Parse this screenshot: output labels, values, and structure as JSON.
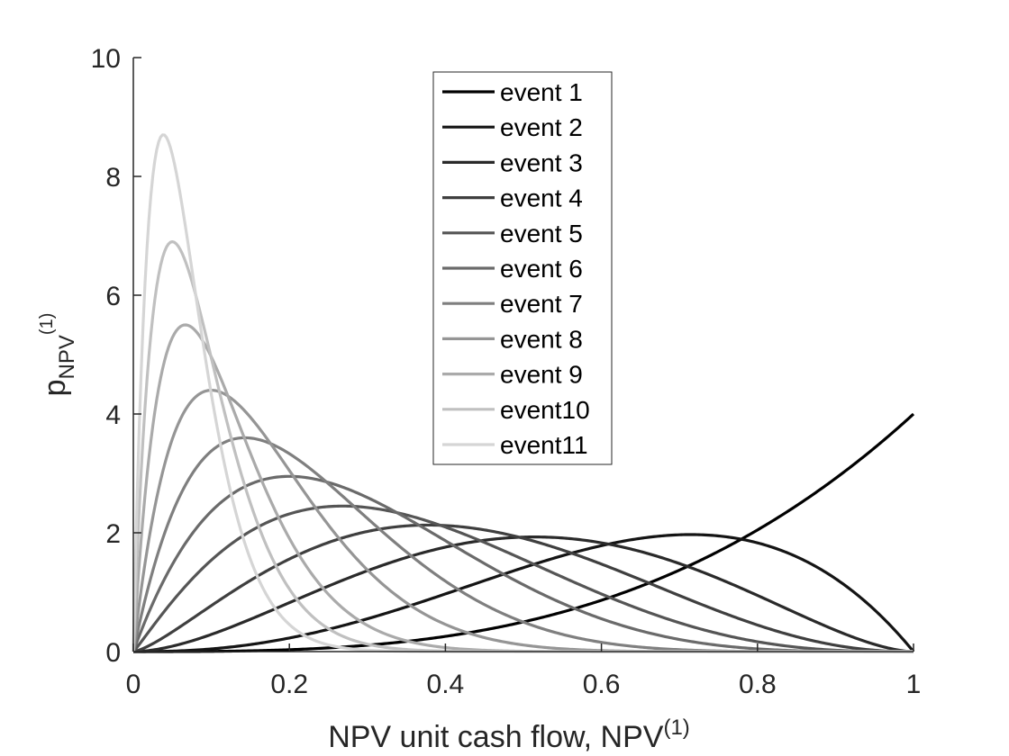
{
  "chart_data": {
    "type": "line",
    "title": "",
    "xlabel": "NPV unit cash flow, NPV",
    "xlabel_superscript": "(1)",
    "ylabel_main": "p",
    "ylabel_subscript": "NPV",
    "ylabel_superscript": "(1)",
    "xlim": [
      0,
      1
    ],
    "ylim": [
      0,
      10
    ],
    "xticks": [
      0,
      0.2,
      0.4,
      0.6,
      0.8,
      1
    ],
    "xtick_labels": [
      "0",
      "0.2",
      "0.4",
      "0.6",
      "0.8",
      "1"
    ],
    "yticks": [
      0,
      2,
      4,
      6,
      8,
      10
    ],
    "ytick_labels": [
      "0",
      "2",
      "4",
      "6",
      "8",
      "10"
    ],
    "grid": false,
    "legend_position": "top-center",
    "series": [
      {
        "name": "event 1",
        "color": "#000000",
        "a": 4,
        "b": 1,
        "peak_x": 1.0,
        "peak_y": 4.0
      },
      {
        "name": "event 2",
        "color": "#141414",
        "a": 3.5,
        "b": 2,
        "peak_x": 0.71,
        "peak_y": 1.97
      },
      {
        "name": "event 3",
        "color": "#2a2a2a",
        "a": 2.8,
        "b": 2.7,
        "peak_x": 0.51,
        "peak_y": 1.93
      },
      {
        "name": "event 4",
        "color": "#3f3f3f",
        "a": 2.4,
        "b": 3.3,
        "peak_x": 0.38,
        "peak_y": 2.13
      },
      {
        "name": "event 5",
        "color": "#555555",
        "a": 2.1,
        "b": 4.0,
        "peak_x": 0.27,
        "peak_y": 2.45
      },
      {
        "name": "event 6",
        "color": "#6a6a6a",
        "a": 2.0,
        "b": 5.0,
        "peak_x": 0.2,
        "peak_y": 2.95
      },
      {
        "name": "event 7",
        "color": "#7f7f7f",
        "a": 2.0,
        "b": 7.0,
        "peak_x": 0.14,
        "peak_y": 3.6
      },
      {
        "name": "event 8",
        "color": "#959595",
        "a": 2.0,
        "b": 10.0,
        "peak_x": 0.1,
        "peak_y": 4.4
      },
      {
        "name": "event 9",
        "color": "#aaaaaa",
        "a": 2.0,
        "b": 15.0,
        "peak_x": 0.07,
        "peak_y": 5.5
      },
      {
        "name": "event10",
        "color": "#c0c0c0",
        "a": 2.0,
        "b": 20.0,
        "peak_x": 0.05,
        "peak_y": 6.9
      },
      {
        "name": "event11",
        "color": "#d5d5d5",
        "a": 2.0,
        "b": 26.0,
        "peak_x": 0.04,
        "peak_y": 8.7
      }
    ]
  }
}
